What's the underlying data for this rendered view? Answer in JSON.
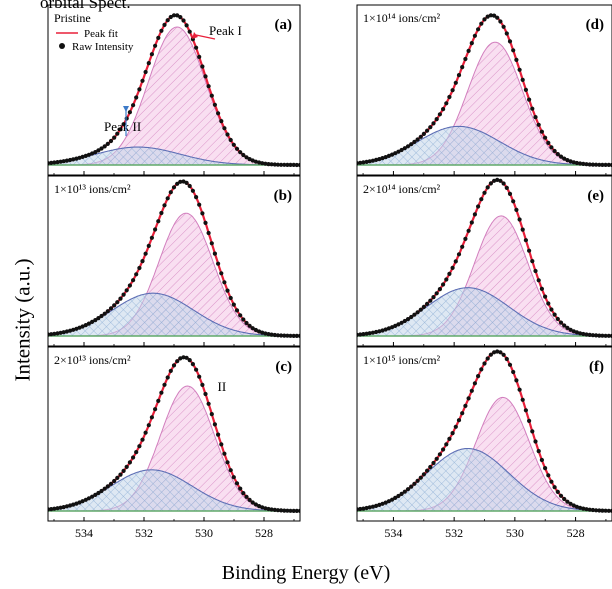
{
  "header_snippet": "orbital Spect.",
  "ylabel": "Intensity (a.u.)",
  "xlabel": "Binding Energy (eV)",
  "colors": {
    "raw": "#111111",
    "fit": "#e8203a",
    "peak1_fill": "#f4c4e6",
    "peak1_hatch": "#d27fbe",
    "peak2_fill": "#c3d6ea",
    "peak2_hatch": "#8fb0d6",
    "peak2_line": "#5e6fb5",
    "baseline": "#60a96a",
    "peak1_arrow": "#e8203a",
    "peak2_arrow": "#3c7ac8"
  },
  "legend": {
    "fit": "Peak fit",
    "raw": "Raw Intensity"
  },
  "chart_data": [
    {
      "type": "area",
      "label": "(a)",
      "title": "Pristine",
      "xlim": [
        535.2,
        526.8
      ],
      "xticks": [
        534,
        532,
        530,
        528
      ],
      "peak1": {
        "center": 530.9,
        "amp": 1.0,
        "width": 0.95,
        "name": "Peak I"
      },
      "peak2": {
        "center": 532.2,
        "amp": 0.13,
        "width": 1.4,
        "name": "Peak II"
      }
    },
    {
      "type": "area",
      "label": "(b)",
      "title": "1×10¹³ ions/cm²",
      "xlim": [
        535.2,
        526.8
      ],
      "xticks": [
        534,
        532,
        530,
        528
      ],
      "peak1": {
        "center": 530.6,
        "amp": 0.89,
        "width": 0.9
      },
      "peak2": {
        "center": 531.7,
        "amp": 0.31,
        "width": 1.35
      }
    },
    {
      "type": "area",
      "label": "(c)",
      "title": "2×10¹³ ions/cm²",
      "annotation": "II",
      "xlim": [
        535.2,
        526.8
      ],
      "xticks": [
        534,
        532,
        530,
        528
      ],
      "peak1": {
        "center": 530.55,
        "amp": 0.88,
        "width": 0.9
      },
      "peak2": {
        "center": 531.75,
        "amp": 0.29,
        "width": 1.35
      }
    },
    {
      "type": "area",
      "label": "(d)",
      "title": "1×10¹⁴ ions/cm²",
      "xlim": [
        535.2,
        526.8
      ],
      "xticks": [
        534,
        532,
        530,
        528
      ],
      "peak1": {
        "center": 530.65,
        "amp": 0.89,
        "width": 0.9
      },
      "peak2": {
        "center": 531.85,
        "amp": 0.28,
        "width": 1.35
      }
    },
    {
      "type": "area",
      "label": "(e)",
      "title": "2×10¹⁴ ions/cm²",
      "xlim": [
        535.2,
        526.8
      ],
      "xticks": [
        534,
        532,
        530,
        528
      ],
      "peak1": {
        "center": 530.45,
        "amp": 0.87,
        "width": 0.88
      },
      "peak2": {
        "center": 531.55,
        "amp": 0.35,
        "width": 1.35
      }
    },
    {
      "type": "area",
      "label": "(f)",
      "title": "1×10¹⁵ ions/cm²",
      "xlim": [
        535.2,
        526.8
      ],
      "xticks": [
        534,
        532,
        530,
        528
      ],
      "peak1": {
        "center": 530.4,
        "amp": 0.8,
        "width": 0.88
      },
      "peak2": {
        "center": 531.55,
        "amp": 0.44,
        "width": 1.35
      }
    }
  ]
}
